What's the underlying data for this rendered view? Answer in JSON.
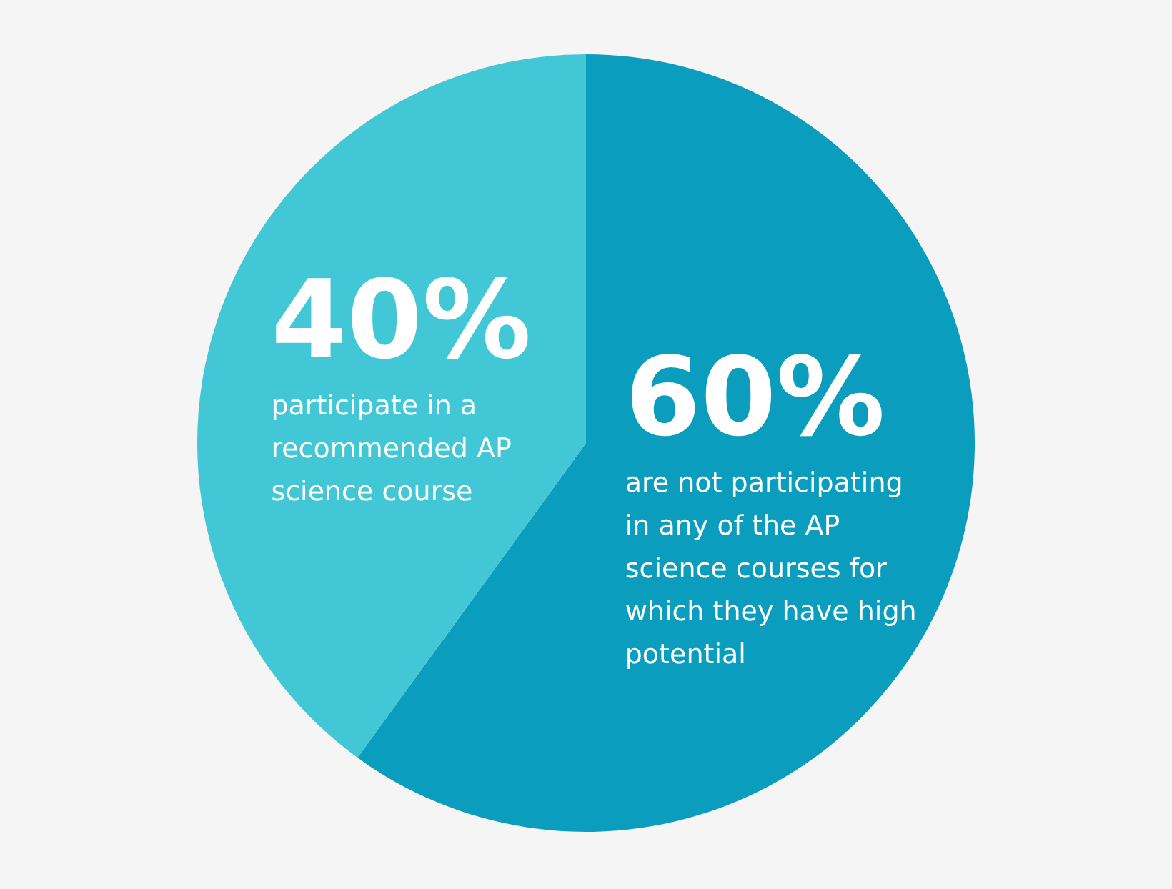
{
  "chart_data": {
    "type": "pie",
    "categories": [
      "are not participating in any of the AP science courses for which they have high potential",
      "participate in a recommended AP science course"
    ],
    "values": [
      60,
      40
    ],
    "colors": [
      "#0b9dbd",
      "#41c7d6"
    ],
    "value_labels": [
      "60%",
      "40%"
    ],
    "legend": false
  }
}
